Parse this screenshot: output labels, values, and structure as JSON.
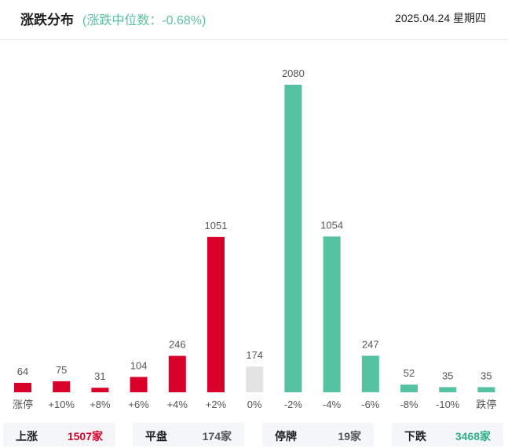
{
  "header": {
    "title": "涨跌分布",
    "subtitle": "(涨跌中位数：-0.68%)",
    "date": "2025.04.24 星期四"
  },
  "colors": {
    "up": "#d9002a",
    "flat": "#e3e3e3",
    "down": "#55c2a2"
  },
  "chart_data": {
    "type": "bar",
    "categories": [
      "涨停",
      "+10%",
      "+8%",
      "+6%",
      "+4%",
      "+2%",
      "0%",
      "-2%",
      "-4%",
      "-6%",
      "-8%",
      "-10%",
      "跌停"
    ],
    "values": [
      64,
      75,
      31,
      104,
      246,
      1051,
      174,
      2080,
      1054,
      247,
      52,
      35,
      35
    ],
    "value_labels": [
      "64",
      "75",
      "31",
      "104",
      "246",
      "1051",
      "174",
      "2080",
      "1054",
      "247",
      "52",
      "35",
      "35"
    ],
    "bar_colors": [
      "up",
      "up",
      "up",
      "up",
      "up",
      "up",
      "flat",
      "down",
      "down",
      "down",
      "down",
      "down",
      "down"
    ],
    "title": "涨跌分布",
    "xlabel": "",
    "ylabel": "",
    "grid": false
  },
  "summary": [
    {
      "label": "上涨",
      "count": "1507家",
      "color": "#d9002a"
    },
    {
      "label": "平盘",
      "count": "174家",
      "color": "#555555"
    },
    {
      "label": "停牌",
      "count": "19家",
      "color": "#555555"
    },
    {
      "label": "下跌",
      "count": "3468家",
      "color": "#2fae87"
    }
  ]
}
